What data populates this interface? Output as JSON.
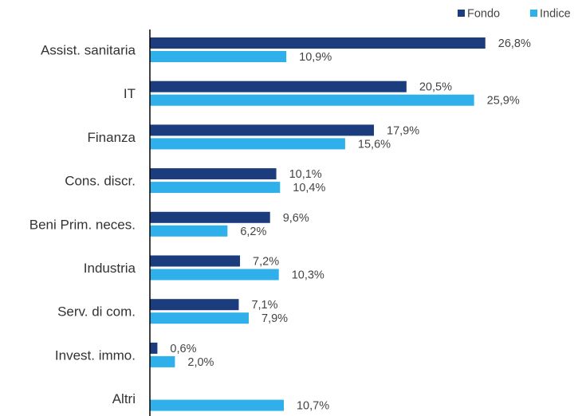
{
  "chart_data": {
    "type": "bar",
    "orientation": "horizontal",
    "categories": [
      "Assist. sanitaria",
      "IT",
      "Finanza",
      "Cons. discr.",
      "Beni Prim. neces.",
      "Industria",
      "Serv. di com.",
      "Invest. immo.",
      "Altri"
    ],
    "series": [
      {
        "name": "Fondo",
        "values": [
          26.8,
          20.5,
          17.9,
          10.1,
          9.6,
          7.2,
          7.1,
          0.6,
          null
        ],
        "labels": [
          "26,8%",
          "20,5%",
          "17,9%",
          "10,1%",
          "9,6%",
          "7,2%",
          "7,1%",
          "0,6%",
          ""
        ]
      },
      {
        "name": "Indice",
        "values": [
          10.9,
          25.9,
          15.6,
          10.4,
          6.2,
          10.3,
          7.9,
          2.0,
          10.7
        ],
        "labels": [
          "10,9%",
          "25,9%",
          "15,6%",
          "10,4%",
          "6,2%",
          "10,3%",
          "7,9%",
          "2,0%",
          "10,7%"
        ]
      }
    ],
    "xlim": [
      0,
      34
    ],
    "grid": false,
    "legend_position": "top-right",
    "colors": {
      "Fondo": "#1b3d7e",
      "Indice": "#2fb0ea"
    }
  }
}
